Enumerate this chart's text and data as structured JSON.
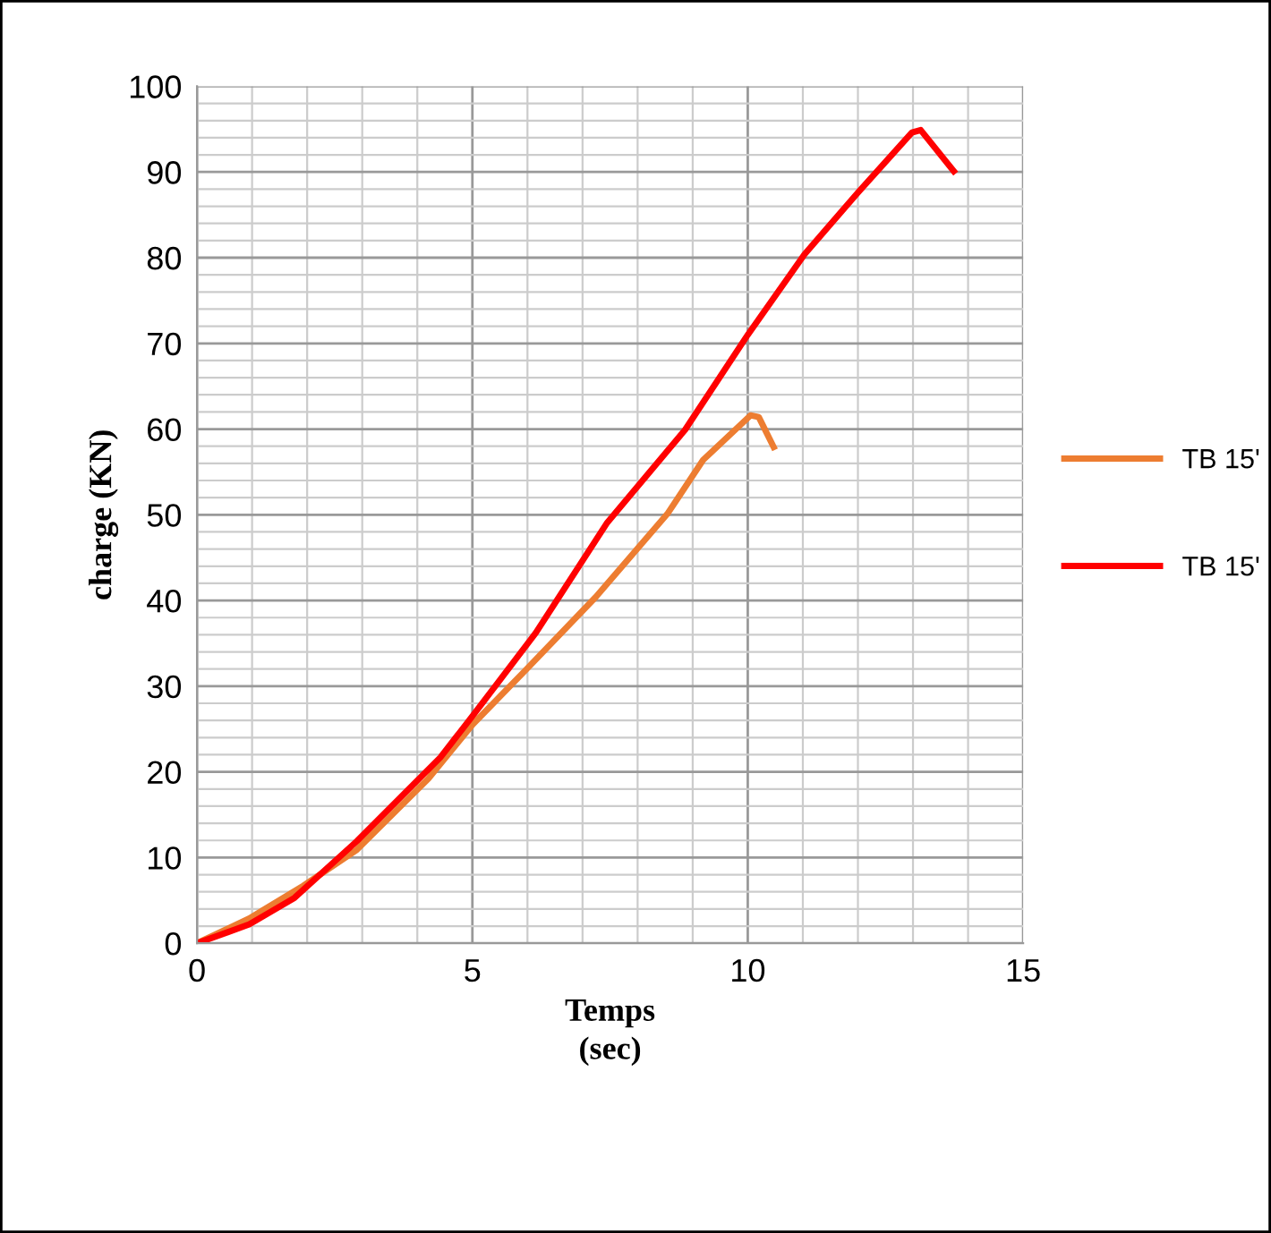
{
  "chart_data": {
    "type": "line",
    "xlabel": "Temps\n(sec)",
    "ylabel": "charge (KN)",
    "xlim": [
      0,
      15
    ],
    "xticks": [
      0,
      5,
      10,
      15
    ],
    "ylim": [
      0,
      100
    ],
    "yticks": [
      0,
      10,
      20,
      30,
      40,
      50,
      60,
      70,
      80,
      90,
      100
    ],
    "grid": true,
    "legend": "right",
    "marker": "none",
    "line_style": "solid",
    "series": [
      {
        "name": "TB 15'",
        "color": "#ed7d31",
        "x": [
          0,
          0.95,
          1.93,
          2.9,
          4.2,
          5,
          5.94,
          7.24,
          8.54,
          9.19,
          10.05,
          10.2,
          10.47
        ],
        "values": [
          0,
          2.9,
          6.7,
          10.9,
          19.2,
          25.5,
          31.7,
          40.4,
          50.1,
          56.4,
          61.6,
          61.4,
          57.9
        ]
      },
      {
        "name": "TB 15'",
        "color": "#ff0000",
        "x": [
          0,
          0.95,
          1.77,
          2.9,
          4.42,
          5,
          6.15,
          7.45,
          8.86,
          10,
          11.03,
          12,
          12.98,
          13.14,
          13.74
        ],
        "values": [
          0,
          2.2,
          5.3,
          11.9,
          21.7,
          26.5,
          36.2,
          49.1,
          59.9,
          71,
          80.4,
          87.6,
          94.6,
          94.9,
          90.1
        ]
      }
    ]
  }
}
